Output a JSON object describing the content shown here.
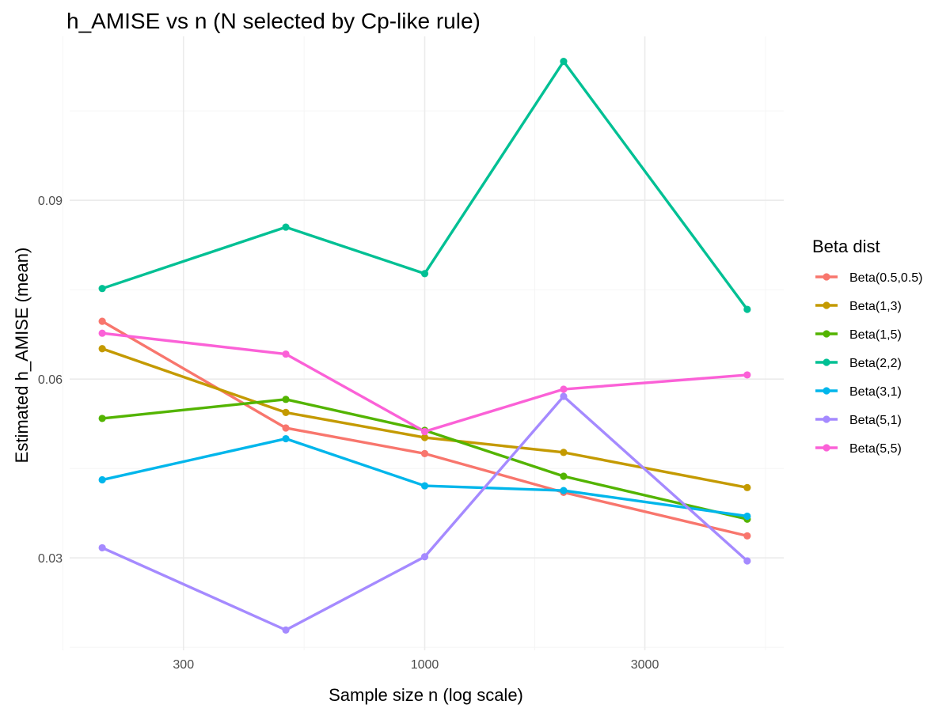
{
  "chart_data": {
    "type": "line",
    "title": "h_AMISE vs n (N selected by Cp-like rule)",
    "xlabel": "Sample size n (log scale)",
    "ylabel": "Estimated h_AMISE (mean)",
    "x_scale": "log10",
    "xlim": [
      170,
      6000
    ],
    "ylim": [
      0.0145,
      0.1175
    ],
    "x_ticks": [
      300,
      1000,
      3000
    ],
    "x_tick_labels": [
      "300",
      "1000",
      "3000"
    ],
    "y_ticks": [
      0.03,
      0.06,
      0.09
    ],
    "y_tick_labels": [
      "0.03",
      "0.06",
      "0.09"
    ],
    "y_minor_ticks": [
      0.015,
      0.045,
      0.075,
      0.105
    ],
    "grid": true,
    "legend_title": "Beta dist",
    "legend_position": "right",
    "x": [
      200,
      500,
      1000,
      2000,
      5000
    ],
    "series": [
      {
        "name": "Beta(0.5,0.5)",
        "color": "#F8766D",
        "values": [
          0.0697,
          0.0518,
          0.0475,
          0.041,
          0.0337
        ]
      },
      {
        "name": "Beta(1,3)",
        "color": "#C49A00",
        "values": [
          0.0651,
          0.0544,
          0.0502,
          0.0477,
          0.0418
        ]
      },
      {
        "name": "Beta(1,5)",
        "color": "#53B400",
        "values": [
          0.0534,
          0.0566,
          0.0514,
          0.0437,
          0.0365
        ]
      },
      {
        "name": "Beta(2,2)",
        "color": "#00C094",
        "values": [
          0.0752,
          0.0855,
          0.0777,
          0.1133,
          0.0717
        ]
      },
      {
        "name": "Beta(3,1)",
        "color": "#00B6EB",
        "values": [
          0.0431,
          0.05,
          0.0421,
          0.0413,
          0.037
        ]
      },
      {
        "name": "Beta(5,1)",
        "color": "#A58AFF",
        "values": [
          0.0317,
          0.0179,
          0.0302,
          0.0571,
          0.0295
        ]
      },
      {
        "name": "Beta(5,5)",
        "color": "#FB61D7",
        "values": [
          0.0677,
          0.0642,
          0.0512,
          0.0583,
          0.0607
        ]
      }
    ]
  }
}
